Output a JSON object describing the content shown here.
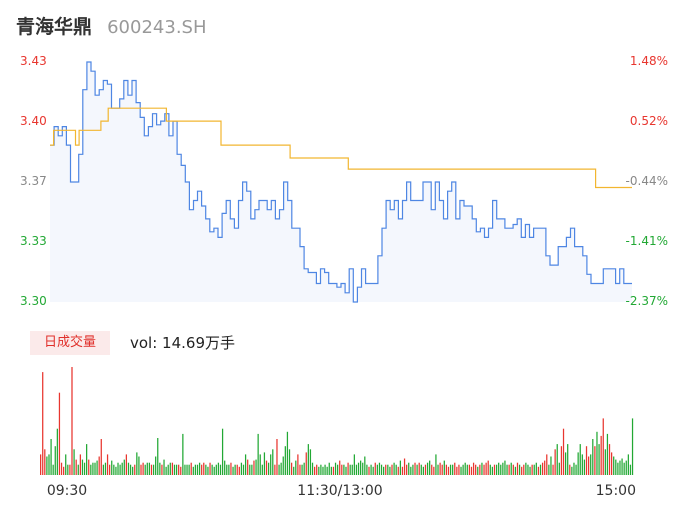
{
  "header": {
    "name": "青海华鼎",
    "code": "600243.SH"
  },
  "volume_badge": "日成交量",
  "volume_label": "vol: 14.69万手",
  "colors": {
    "up": "#e8362f",
    "down": "#22a834",
    "price_line": "#4e86e3",
    "avg_line": "#f2b630",
    "area_fill": "#f4f7fd"
  },
  "chart_data": [
    {
      "type": "line",
      "x_ticks": [
        "09:30",
        "11:30/13:00",
        "15:00"
      ],
      "y_ticks_left": [
        "3.43",
        "3.40",
        "3.37",
        "3.33",
        "3.30"
      ],
      "y_ticks_right": [
        "1.48%",
        "0.52%",
        "-0.44%",
        "-1.41%",
        "-2.37%"
      ],
      "ylim": [
        3.3,
        3.43
      ],
      "series": [
        {
          "key": "price",
          "values": [
            3.385,
            3.395,
            3.39,
            3.395,
            3.385,
            3.365,
            3.365,
            3.38,
            3.415,
            3.43,
            3.425,
            3.412,
            3.415,
            3.42,
            3.418,
            3.405,
            3.405,
            3.41,
            3.42,
            3.412,
            3.42,
            3.408,
            3.4,
            3.39,
            3.395,
            3.402,
            3.396,
            3.398,
            3.402,
            3.39,
            3.398,
            3.38,
            3.374,
            3.365,
            3.35,
            3.355,
            3.36,
            3.352,
            3.345,
            3.338,
            3.34,
            3.335,
            3.348,
            3.355,
            3.345,
            3.34,
            3.355,
            3.365,
            3.36,
            3.345,
            3.35,
            3.355,
            3.355,
            3.35,
            3.355,
            3.345,
            3.35,
            3.365,
            3.355,
            3.34,
            3.34,
            3.33,
            3.318,
            3.316,
            3.316,
            3.31,
            3.318,
            3.316,
            3.31,
            3.31,
            3.308,
            3.31,
            3.305,
            3.318,
            3.3,
            3.308,
            3.318,
            3.31,
            3.31,
            3.31,
            3.325,
            3.34,
            3.355,
            3.35,
            3.355,
            3.345,
            3.355,
            3.365,
            3.355,
            3.355,
            3.355,
            3.365,
            3.365,
            3.35,
            3.365,
            3.355,
            3.345,
            3.36,
            3.365,
            3.345,
            3.355,
            3.352,
            3.352,
            3.345,
            3.338,
            3.34,
            3.335,
            3.34,
            3.355,
            3.345,
            3.345,
            3.34,
            3.34,
            3.342,
            3.345,
            3.335,
            3.342,
            3.335,
            3.34,
            3.34,
            3.34,
            3.325,
            3.32,
            3.32,
            3.33,
            3.33,
            3.335,
            3.34,
            3.33,
            3.33,
            3.325,
            3.315,
            3.31,
            3.31,
            3.31,
            3.318,
            3.318,
            3.318,
            3.31,
            3.318,
            3.31,
            3.31
          ]
        },
        {
          "key": "average",
          "values": [
            3.385,
            3.393,
            3.393,
            3.393,
            3.393,
            3.393,
            3.393,
            3.385,
            3.393,
            3.393,
            3.393,
            3.393,
            3.393,
            3.393,
            3.398,
            3.398,
            3.405,
            3.405,
            3.405,
            3.405,
            3.405,
            3.405,
            3.405,
            3.405,
            3.405,
            3.405,
            3.405,
            3.405,
            3.405,
            3.405,
            3.405,
            3.405,
            3.398,
            3.398,
            3.398,
            3.398,
            3.398,
            3.398,
            3.398,
            3.398,
            3.398,
            3.398,
            3.398,
            3.398,
            3.398,
            3.398,
            3.398,
            3.385,
            3.385,
            3.385,
            3.385,
            3.385,
            3.385,
            3.385,
            3.385,
            3.385,
            3.385,
            3.385,
            3.385,
            3.385,
            3.385,
            3.385,
            3.385,
            3.385,
            3.385,
            3.385,
            3.378,
            3.378,
            3.378,
            3.378,
            3.378,
            3.378,
            3.378,
            3.378,
            3.378,
            3.378,
            3.378,
            3.378,
            3.378,
            3.378,
            3.378,
            3.378,
            3.372,
            3.372,
            3.372,
            3.372,
            3.372,
            3.372,
            3.372,
            3.372,
            3.372,
            3.372,
            3.372,
            3.372,
            3.372,
            3.372,
            3.372,
            3.372,
            3.372,
            3.372,
            3.372,
            3.372,
            3.372,
            3.372,
            3.372,
            3.372,
            3.372,
            3.372,
            3.372,
            3.372,
            3.372,
            3.372,
            3.372,
            3.372,
            3.372,
            3.372,
            3.372,
            3.372,
            3.372,
            3.372,
            3.372,
            3.372,
            3.372,
            3.372,
            3.372,
            3.372,
            3.372,
            3.372,
            3.372,
            3.372,
            3.372,
            3.372,
            3.372,
            3.372,
            3.372,
            3.372,
            3.372,
            3.372,
            3.372,
            3.372,
            3.372,
            3.372,
            3.372,
            3.372,
            3.372,
            3.372,
            3.372,
            3.372,
            3.372,
            3.372,
            3.362,
            3.362,
            3.362,
            3.362,
            3.362,
            3.362,
            3.362,
            3.362,
            3.362,
            3.362
          ]
        }
      ]
    },
    {
      "type": "bar",
      "volumes": [
        20,
        100,
        25,
        18,
        20,
        35,
        10,
        28,
        45,
        80,
        12,
        8,
        20,
        10,
        10,
        105,
        25,
        15,
        10,
        20,
        15,
        12,
        30,
        15,
        10,
        12,
        12,
        14,
        18,
        35,
        10,
        12,
        20,
        10,
        14,
        10,
        8,
        12,
        10,
        12,
        15,
        20,
        12,
        10,
        8,
        10,
        22,
        18,
        10,
        12,
        10,
        12,
        12,
        10,
        10,
        18,
        36,
        12,
        10,
        15,
        8,
        10,
        12,
        12,
        10,
        10,
        10,
        8,
        40,
        10,
        10,
        10,
        12,
        8,
        10,
        10,
        12,
        10,
        12,
        10,
        8,
        12,
        10,
        8,
        10,
        12,
        10,
        45,
        14,
        10,
        10,
        12,
        8,
        10,
        10,
        8,
        12,
        10,
        20,
        15,
        10,
        10,
        14,
        15,
        40,
        20,
        10,
        22,
        14,
        12,
        20,
        25,
        10,
        35,
        10,
        12,
        18,
        28,
        42,
        25,
        12,
        8,
        14,
        20,
        10,
        10,
        12,
        22,
        30,
        25,
        12,
        8,
        10,
        8,
        10,
        8,
        10,
        8,
        12,
        8,
        8,
        12,
        10,
        14,
        10,
        10,
        8,
        12,
        10,
        10,
        20,
        10,
        12,
        14,
        12,
        18,
        10,
        8,
        10,
        8,
        12,
        10,
        12,
        10,
        8,
        10,
        10,
        8,
        10,
        12,
        10,
        8,
        14,
        8,
        16,
        10,
        12,
        8,
        10,
        12,
        10,
        12,
        10,
        8,
        10,
        12,
        14,
        10,
        8,
        20,
        10,
        12,
        10,
        14,
        10,
        8,
        10,
        10,
        12,
        8,
        10,
        8,
        10,
        12,
        10,
        10,
        8,
        12,
        10,
        8,
        10,
        12,
        10,
        12,
        14,
        10,
        8,
        10,
        10,
        12,
        10,
        12,
        14,
        10,
        10,
        12,
        10,
        8,
        12,
        10,
        8,
        10,
        12,
        10,
        8,
        10,
        10,
        12,
        8,
        10,
        12,
        14,
        20,
        10,
        18,
        10,
        25,
        30,
        12,
        28,
        45,
        22,
        30,
        10,
        8,
        12,
        10,
        22,
        30,
        20,
        15,
        28,
        18,
        20,
        35,
        28,
        42,
        30,
        38,
        55,
        25,
        40,
        30,
        22,
        18,
        15,
        12,
        14,
        16,
        12,
        14,
        20,
        10,
        55
      ],
      "directions": "uuudddddduuudduudududddudddduudduudddddddudddudduudddudddduddddudduuddddudddduuddudddddddddudduudddudduddddduddduuddddddudduudduddduudddddddudduudduddddddddduddudddduddudduduuudddududdudduudduuduudduuudddduuuududuuudduddddddudududuudddudduduuudduudduudduddddddduuddudduudduudddd"
    }
  ]
}
